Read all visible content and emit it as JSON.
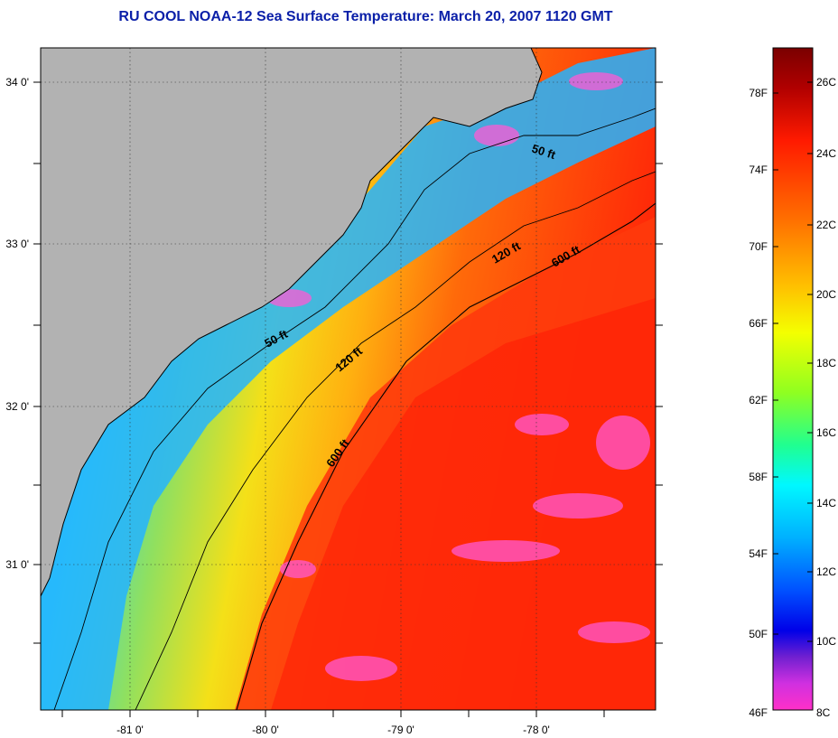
{
  "title": "RU COOL  NOAA-12  Sea Surface Temperature:  March 20, 2007 1120 GMT",
  "map": {
    "longitude_ticks": [
      "-81 0'",
      "-80 0'",
      "-79 0'",
      "-78 0'"
    ],
    "latitude_ticks": [
      "34 0'",
      "33 0'",
      "32 0'",
      "31 0'"
    ],
    "contour_labels": [
      "50 ft",
      "50 ft",
      "120 ft",
      "120 ft",
      "600 ft",
      "600 ft"
    ],
    "colors": {
      "land": "#b2b2b2",
      "nearshore": "#22b8ff",
      "mid_shelf": "#ffd21c",
      "gulf_stream": "#ff2a0a",
      "cloud": "#ff33cc"
    }
  },
  "colorbar": {
    "fahrenheit_labels": [
      "78F",
      "74F",
      "70F",
      "66F",
      "62F",
      "58F",
      "54F",
      "50F",
      "46F"
    ],
    "celsius_labels": [
      "26C",
      "24C",
      "22C",
      "20C",
      "18C",
      "16C",
      "14C",
      "12C",
      "10C",
      "8C"
    ],
    "colors": [
      "#7a0000",
      "#d40000",
      "#ff2a00",
      "#ff7a00",
      "#ffc800",
      "#f0ff00",
      "#9cff00",
      "#30ff60",
      "#00ffd8",
      "#00c8ff",
      "#0078ff",
      "#0020ff",
      "#0000e0",
      "#6a1fd0",
      "#c838e0",
      "#ff33cc"
    ]
  }
}
